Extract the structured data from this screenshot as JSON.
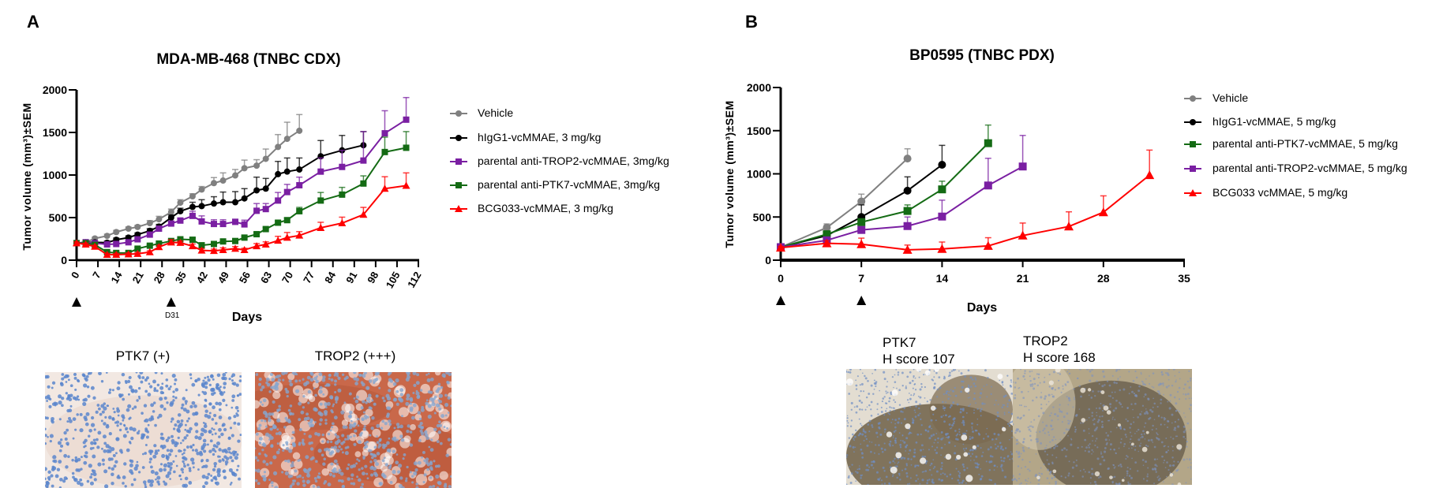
{
  "panels": {
    "A": {
      "letter": "A",
      "title": "MDA-MB-468 (TNBC CDX)",
      "dosing_label": "D31",
      "ihc": [
        {
          "label": "PTK7 (+)"
        },
        {
          "label": "TROP2 (+++)"
        }
      ]
    },
    "B": {
      "letter": "B",
      "title": "BP0595 (TNBC PDX)",
      "ihc": [
        {
          "label_line1": "PTK7",
          "label_line2": "H score 107"
        },
        {
          "label_line1": "TROP2",
          "label_line2": "H score 168"
        }
      ]
    }
  },
  "chart_data": [
    {
      "type": "line",
      "title": "MDA-MB-468 (TNBC CDX)",
      "xlabel": "Days",
      "ylabel": "Tumor volume (mm³)±SEM",
      "xlim": [
        0,
        112
      ],
      "ylim": [
        0,
        2000
      ],
      "xticks": [
        0,
        7,
        14,
        21,
        28,
        35,
        42,
        49,
        56,
        63,
        70,
        77,
        84,
        91,
        98,
        105,
        112
      ],
      "yticks": [
        0,
        500,
        1000,
        1500,
        2000
      ],
      "dosing_days": [
        0,
        31
      ],
      "grid": false,
      "legend_placement": "right",
      "series": [
        {
          "name": "Vehicle",
          "color": "#808080",
          "marker": "circle",
          "x": [
            0,
            3,
            6,
            10,
            13,
            17,
            20,
            24,
            27,
            31,
            34,
            38,
            41,
            45,
            48,
            52,
            55,
            59,
            62,
            66,
            69,
            73
          ],
          "y": [
            200,
            210,
            255,
            285,
            330,
            370,
            390,
            435,
            480,
            565,
            675,
            750,
            830,
            905,
            935,
            995,
            1080,
            1110,
            1190,
            1330,
            1425,
            1520
          ],
          "y_upper_sem": [
            210,
            230,
            270,
            305,
            350,
            390,
            410,
            465,
            515,
            600,
            710,
            780,
            865,
            970,
            1025,
            1065,
            1175,
            1180,
            1305,
            1475,
            1620,
            1710
          ]
        },
        {
          "name": "hIgG1-vcMMAE, 3 mg/kg",
          "color": "#000000",
          "marker": "circle",
          "x": [
            0,
            3,
            6,
            10,
            13,
            17,
            20,
            24,
            27,
            31,
            34,
            38,
            41,
            45,
            48,
            52,
            55,
            59,
            62,
            66,
            69,
            73,
            80,
            87,
            94
          ],
          "y": [
            200,
            210,
            210,
            205,
            240,
            265,
            300,
            345,
            395,
            500,
            575,
            625,
            635,
            665,
            680,
            680,
            725,
            820,
            840,
            1010,
            1040,
            1065,
            1220,
            1290,
            1350
          ],
          "y_upper_sem": [
            215,
            220,
            225,
            225,
            260,
            285,
            320,
            370,
            420,
            530,
            610,
            680,
            710,
            745,
            800,
            805,
            840,
            975,
            960,
            1160,
            1200,
            1200,
            1405,
            1465,
            1510
          ]
        },
        {
          "name": "parental anti-TROP2-vcMMAE, 3mg/kg",
          "color": "#7a1fa2",
          "marker": "square",
          "x": [
            0,
            3,
            6,
            10,
            13,
            17,
            20,
            24,
            27,
            31,
            34,
            38,
            41,
            45,
            48,
            52,
            55,
            59,
            62,
            66,
            69,
            73,
            80,
            87,
            94,
            101,
            108
          ],
          "y": [
            200,
            210,
            200,
            185,
            190,
            210,
            245,
            300,
            370,
            430,
            465,
            520,
            455,
            425,
            425,
            450,
            420,
            580,
            600,
            700,
            800,
            880,
            1040,
            1095,
            1170,
            1490,
            1650
          ],
          "y_upper_sem": [
            215,
            240,
            215,
            200,
            205,
            225,
            260,
            320,
            390,
            455,
            495,
            575,
            520,
            475,
            475,
            480,
            470,
            665,
            665,
            795,
            890,
            975,
            1200,
            1290,
            1510,
            1755,
            1910
          ]
        },
        {
          "name": "parental anti-PTK7-vcMMAE, 3mg/kg",
          "color": "#146b14",
          "marker": "square",
          "x": [
            0,
            3,
            6,
            10,
            13,
            17,
            20,
            24,
            27,
            31,
            34,
            38,
            41,
            45,
            48,
            52,
            55,
            59,
            62,
            66,
            69,
            73,
            80,
            87,
            94,
            101,
            108
          ],
          "y": [
            200,
            200,
            180,
            95,
            85,
            85,
            135,
            170,
            195,
            225,
            245,
            240,
            175,
            190,
            220,
            225,
            265,
            305,
            365,
            440,
            470,
            575,
            700,
            770,
            900,
            1270,
            1320
          ],
          "y_upper_sem": [
            215,
            210,
            195,
            110,
            100,
            100,
            150,
            185,
            210,
            240,
            260,
            260,
            195,
            205,
            235,
            240,
            280,
            320,
            385,
            460,
            495,
            620,
            795,
            855,
            990,
            1445,
            1510
          ]
        },
        {
          "name": "BCG033-vcMMAE, 3 mg/kg",
          "color": "#ff0000",
          "marker": "triangle",
          "x": [
            0,
            3,
            6,
            10,
            13,
            17,
            20,
            24,
            27,
            31,
            34,
            38,
            41,
            45,
            48,
            52,
            55,
            59,
            62,
            66,
            69,
            73,
            80,
            87,
            94,
            101,
            108
          ],
          "y": [
            200,
            185,
            160,
            65,
            65,
            70,
            75,
            95,
            155,
            210,
            205,
            165,
            115,
            110,
            120,
            135,
            120,
            165,
            185,
            230,
            265,
            290,
            380,
            435,
            535,
            840,
            875
          ],
          "y_upper_sem": [
            215,
            200,
            175,
            80,
            80,
            85,
            90,
            110,
            175,
            240,
            225,
            190,
            135,
            130,
            145,
            160,
            140,
            195,
            215,
            280,
            325,
            335,
            445,
            505,
            620,
            980,
            1025
          ]
        }
      ]
    },
    {
      "type": "line",
      "title": "BP0595 (TNBC PDX)",
      "xlabel": "Days",
      "ylabel": "Tumor volume (mm³)±SEM",
      "xlim": [
        0,
        35
      ],
      "ylim": [
        0,
        2000
      ],
      "xticks": [
        0,
        7,
        14,
        21,
        28,
        35
      ],
      "yticks": [
        0,
        500,
        1000,
        1500,
        2000
      ],
      "dosing_days": [
        0,
        7
      ],
      "grid": false,
      "legend_placement": "right",
      "series": [
        {
          "name": "Vehicle",
          "color": "#808080",
          "marker": "circle",
          "x": [
            0,
            4,
            7,
            11
          ],
          "y": [
            150,
            377,
            680,
            1177
          ],
          "y_upper_sem": [
            190,
            420,
            765,
            1290
          ]
        },
        {
          "name": "hIgG1-vcMMAE, 5 mg/kg",
          "color": "#000000",
          "marker": "circle",
          "x": [
            0,
            4,
            7,
            11,
            14
          ],
          "y": [
            150,
            285,
            500,
            805,
            1105
          ],
          "y_upper_sem": [
            170,
            310,
            640,
            965,
            1330
          ]
        },
        {
          "name": "parental anti-PTK7-vcMMAE, 5 mg/kg",
          "color": "#146b14",
          "marker": "square",
          "x": [
            0,
            4,
            7,
            11,
            14,
            18
          ],
          "y": [
            150,
            300,
            440,
            570,
            820,
            1355
          ],
          "y_upper_sem": [
            170,
            320,
            480,
            640,
            915,
            1565
          ]
        },
        {
          "name": "parental anti-TROP2-vcMMAE, 5 mg/kg",
          "color": "#7a1fa2",
          "marker": "square",
          "x": [
            0,
            4,
            7,
            11,
            14,
            18,
            21
          ],
          "y": [
            150,
            230,
            350,
            395,
            505,
            865,
            1085
          ],
          "y_upper_sem": [
            190,
            250,
            380,
            500,
            695,
            1180,
            1445
          ]
        },
        {
          "name": "BCG033 vcMMAE, 5 mg/kg",
          "color": "#ff0000",
          "marker": "triangle",
          "x": [
            0,
            4,
            7,
            11,
            14,
            18,
            21,
            25,
            28,
            32
          ],
          "y": [
            145,
            195,
            185,
            120,
            130,
            165,
            285,
            390,
            555,
            985
          ],
          "y_upper_sem": [
            160,
            225,
            255,
            175,
            210,
            260,
            430,
            560,
            745,
            1275
          ]
        }
      ]
    }
  ]
}
